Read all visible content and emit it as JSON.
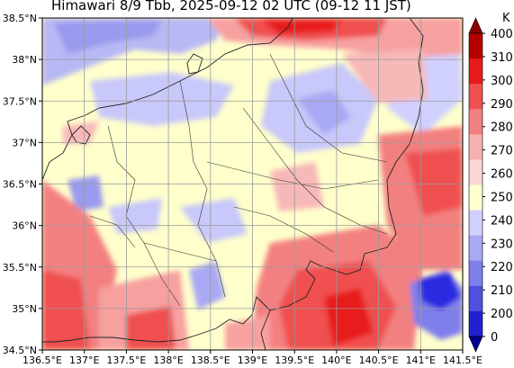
{
  "title": "Himawari 8/9 Tbb, 2025-09-12 02 UTC (09-12 11 JST)",
  "map": {
    "lon_range": [
      136.5,
      141.5
    ],
    "lat_range": [
      34.5,
      38.5
    ],
    "x_ticks": [
      "136.5°E",
      "137°E",
      "137.5°E",
      "138°E",
      "138.5°E",
      "139°E",
      "139.5°E",
      "140°E",
      "140.5°E",
      "141°E",
      "141.5°E"
    ],
    "y_ticks": [
      "38.5°N",
      "38°N",
      "37.5°N",
      "37°N",
      "36.5°N",
      "36°N",
      "35.5°N",
      "35°N",
      "34.5°N"
    ],
    "gridlines": true
  },
  "colorbar": {
    "unit": "K",
    "levels": [
      "400",
      "310",
      "300",
      "290",
      "280",
      "270",
      "260",
      "250",
      "240",
      "230",
      "220",
      "210",
      "200",
      "0"
    ],
    "colors": [
      "#8b0000",
      "#b40000",
      "#e81a1a",
      "#f05050",
      "#f38080",
      "#f7b0b0",
      "#fbd6d6",
      "#ffffcc",
      "#d0d0ff",
      "#a8a8f4",
      "#7f7fec",
      "#4f4fe0",
      "#2020d0",
      "#000090"
    ],
    "extend": "both"
  }
}
